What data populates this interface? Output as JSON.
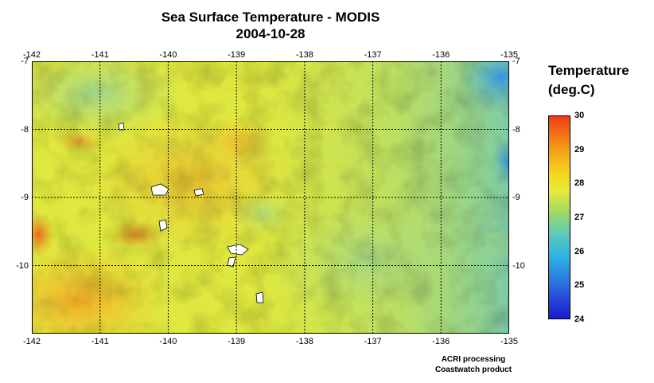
{
  "title": "Sea Surface Temperature - MODIS",
  "date": "2004-10-28",
  "lon_ticks": [
    -142,
    -141,
    -140,
    -139,
    -138,
    -137,
    -136,
    -135
  ],
  "lat_ticks": [
    -7,
    -8,
    -9,
    -10
  ],
  "lon_range": [
    -142,
    -135
  ],
  "lat_range": [
    -7,
    -11
  ],
  "colorbar": {
    "title_line1": "Temperature",
    "title_line2": "(deg.C)",
    "min": 24,
    "max": 30,
    "ticks": [
      30,
      29,
      28,
      27,
      26,
      25,
      24
    ],
    "colors": [
      "#1a1acc",
      "#2a6ae0",
      "#2bb0e6",
      "#5ccbb8",
      "#9ad86a",
      "#e6ec3a",
      "#f6d41c",
      "#f59c1a",
      "#ee3b14"
    ]
  },
  "credit_line1": "ACRI processing",
  "credit_line2": "Coastwatch product",
  "land_color": "#ffffff",
  "grid_style": "dotted",
  "grid_color": "#000000"
}
